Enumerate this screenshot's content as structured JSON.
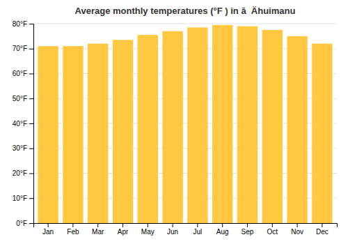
{
  "chart_data": {
    "type": "bar",
    "title": "Average monthly temperatures (°F ) in ā  Ähuimanu",
    "categories": [
      "Jan",
      "Feb",
      "Mar",
      "Apr",
      "May",
      "Jun",
      "Jul",
      "Aug",
      "Sep",
      "Oct",
      "Nov",
      "Dec"
    ],
    "values": [
      71,
      71,
      72,
      73.5,
      75.5,
      77,
      78.5,
      79.5,
      79,
      77.5,
      75,
      72
    ],
    "color": "#FFC840",
    "ylim": [
      0,
      80
    ],
    "yticks": [
      {
        "value": 0,
        "label": "0°F"
      },
      {
        "value": 10,
        "label": "10°F"
      },
      {
        "value": 20,
        "label": "20°F"
      },
      {
        "value": 30,
        "label": "30°F"
      },
      {
        "value": 40,
        "label": "40°F"
      },
      {
        "value": 50,
        "label": "50°F"
      },
      {
        "value": 60,
        "label": "60°F"
      },
      {
        "value": 70,
        "label": "70°F"
      },
      {
        "value": 80,
        "label": "80°F"
      }
    ],
    "grid": true
  }
}
